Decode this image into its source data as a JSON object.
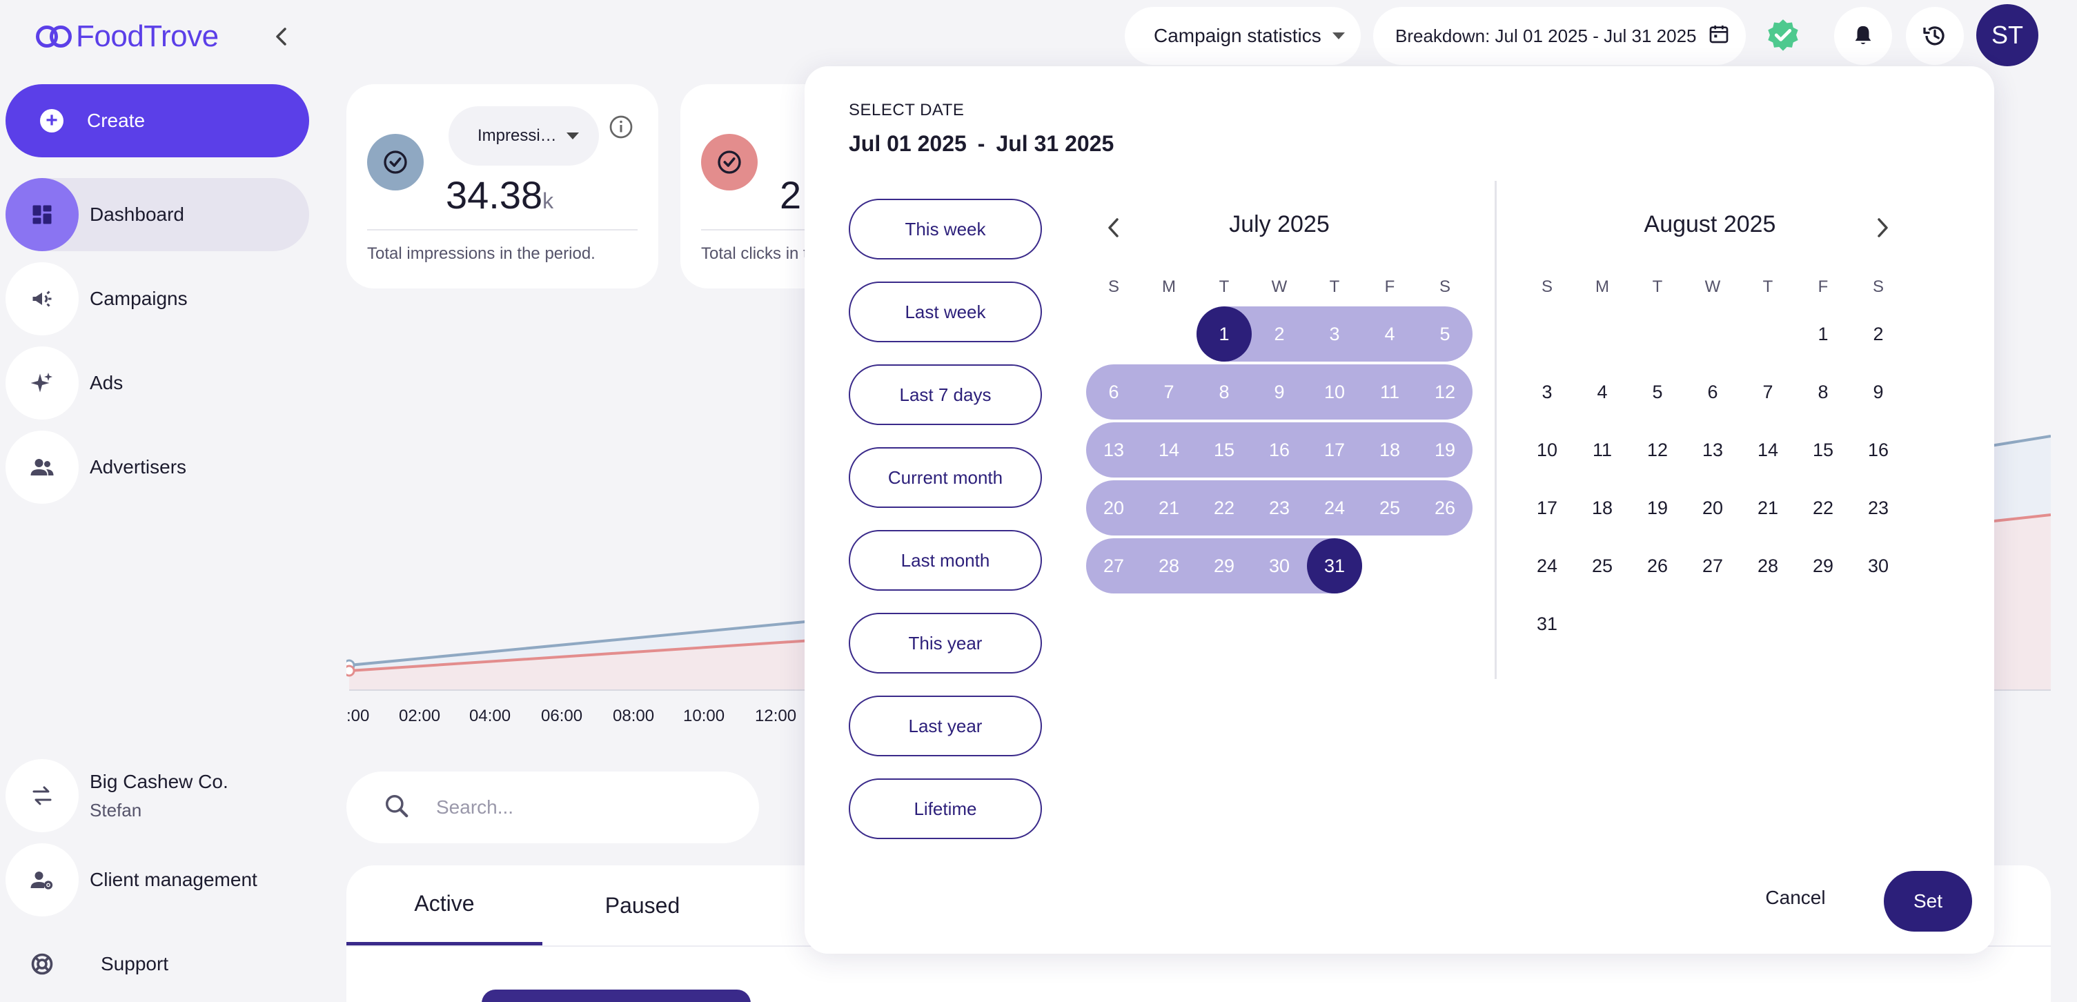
{
  "app": {
    "brand": "FoodTrove",
    "brand_color": "#5b3fe8",
    "accent_dark": "#2c1f7a"
  },
  "sidebar": {
    "create_label": "Create",
    "items": [
      {
        "label": "Dashboard",
        "icon": "dashboard-icon",
        "active": true
      },
      {
        "label": "Campaigns",
        "icon": "megaphone-icon"
      },
      {
        "label": "Ads",
        "icon": "sparkles-icon"
      },
      {
        "label": "Advertisers",
        "icon": "people-icon"
      }
    ],
    "account": {
      "name": "Big Cashew Co.",
      "user": "Stefan",
      "icon": "switch-arrows-icon"
    },
    "client_management": "Client management",
    "support": "Support"
  },
  "topbar": {
    "campaign_select": "Campaign statistics",
    "breakdown": "Breakdown: Jul 01 2025 - Jul 31 2025",
    "avatar_initials": "ST"
  },
  "cards": [
    {
      "metric": "Impressi…",
      "value": "34.38",
      "unit": "k",
      "description": "Total impressions in the period."
    },
    {
      "value": "2",
      "description": "Total clicks in t"
    }
  ],
  "chart": {
    "ticks": [
      ":00",
      "02:00",
      "04:00",
      "06:00",
      "08:00",
      "10:00",
      "12:00"
    ],
    "series_colors": [
      "#8fa8c2",
      "#e38d8d"
    ]
  },
  "search": {
    "placeholder": "Search..."
  },
  "tabs": [
    "Active",
    "Paused"
  ],
  "datepicker": {
    "caption": "SELECT DATE",
    "start": "Jul 01 2025",
    "separator": "-",
    "end": "Jul 31 2025",
    "presets": [
      "This week",
      "Last week",
      "Last 7 days",
      "Current month",
      "Last month",
      "This year",
      "Last year",
      "Lifetime"
    ],
    "weekdays": [
      "S",
      "M",
      "T",
      "W",
      "T",
      "F",
      "S"
    ],
    "months": [
      {
        "title": "July 2025",
        "days_in_month": 31,
        "first_weekday": 2,
        "selected_from": 1,
        "selected_to": 31
      },
      {
        "title": "August 2025",
        "days_in_month": 31,
        "first_weekday": 5
      }
    ],
    "cancel_label": "Cancel",
    "set_label": "Set",
    "range_color": "#b4aee0"
  }
}
